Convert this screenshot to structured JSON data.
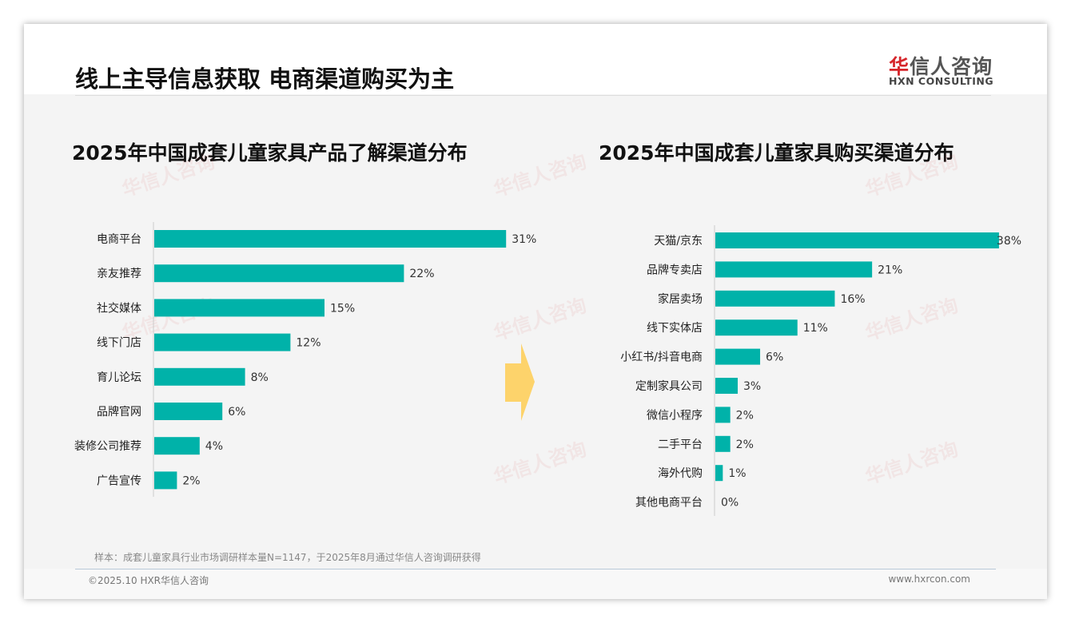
{
  "title": "线上主导信息获取 电商渠道购买为主",
  "logo": {
    "cn": "华信人咨询",
    "en": "HXN CONSULTING"
  },
  "note": "样本：成套儿童家具行业市场调研样本量N=1147，于2025年8月通过华信人咨询调研获得",
  "footer": {
    "copyright": "©2025.10 HXR华信人咨询",
    "url": "www.hxrcon.com"
  },
  "colors": {
    "bar": "#00b2a9",
    "arrow": "#fdd36b"
  },
  "chart_data": [
    {
      "type": "bar",
      "orientation": "horizontal",
      "title": "2025年中国成套儿童家具产品了解渠道分布",
      "unit": "%",
      "categories": [
        "电商平台",
        "亲友推荐",
        "社交媒体",
        "线下门店",
        "育儿论坛",
        "品牌官网",
        "装修公司推荐",
        "广告宣传"
      ],
      "values": [
        31,
        22,
        15,
        12,
        8,
        6,
        4,
        2
      ]
    },
    {
      "type": "bar",
      "orientation": "horizontal",
      "title": "2025年中国成套儿童家具购买渠道分布",
      "unit": "%",
      "categories": [
        "天猫/京东",
        "品牌专卖店",
        "家居卖场",
        "线下实体店",
        "小红书/抖音电商",
        "定制家具公司",
        "微信小程序",
        "二手平台",
        "海外代购",
        "其他电商平台"
      ],
      "values": [
        38,
        21,
        16,
        11,
        6,
        3,
        2,
        2,
        1,
        0
      ]
    }
  ]
}
